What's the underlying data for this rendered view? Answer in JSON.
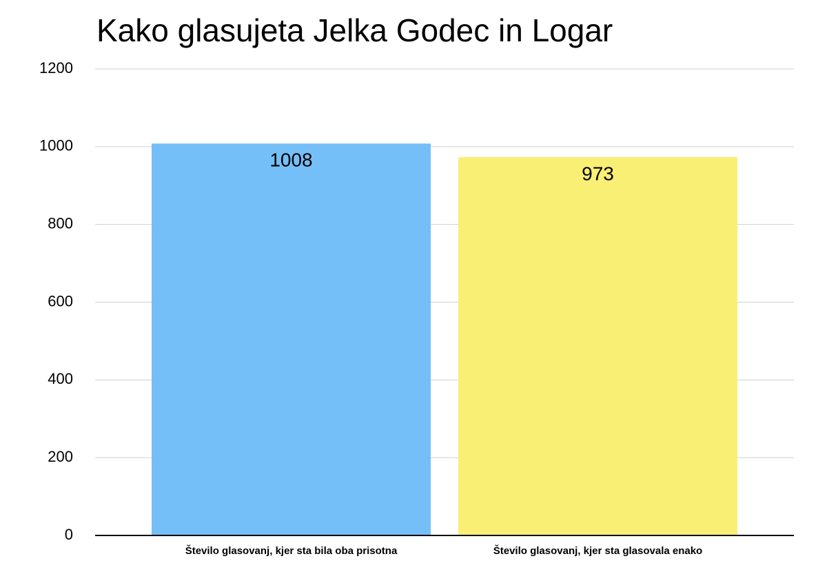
{
  "chart_data": {
    "type": "bar",
    "title": "Kako glasujeta Jelka Godec in Logar",
    "categories": [
      "Število glasovanj, kjer sta bila oba prisotna",
      "Število glasovanj, kjer sta glasovala enako"
    ],
    "values": [
      1008,
      973
    ],
    "colors": [
      "#74bff7",
      "#f9ef74"
    ],
    "ylim": [
      0,
      1200
    ],
    "yticks": [
      0,
      200,
      400,
      600,
      800,
      1000,
      1200
    ],
    "grid": true
  }
}
